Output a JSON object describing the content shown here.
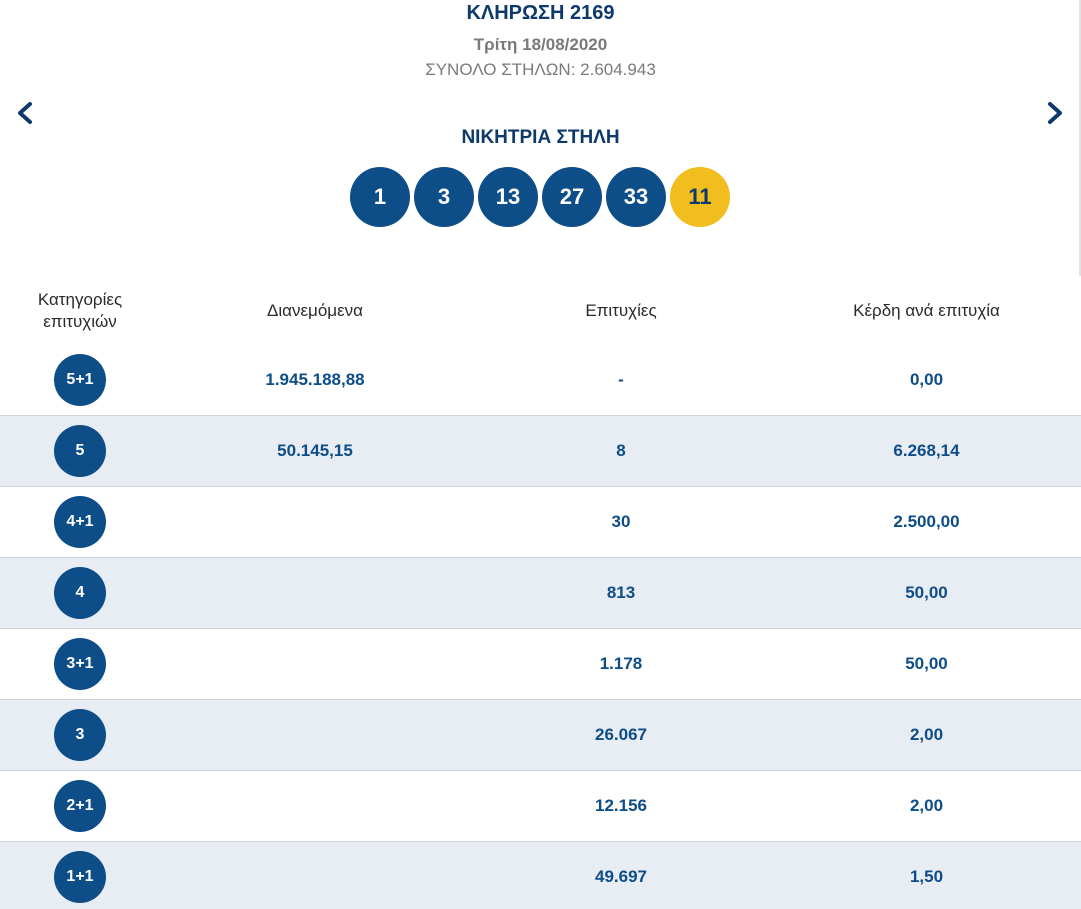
{
  "draw": {
    "title": "ΚΛΗΡΩΣΗ 2169",
    "date": "Τρίτη 18/08/2020",
    "total_columns": "ΣΥΝΟΛΟ ΣΤΗΛΩΝ: 2.604.943"
  },
  "navigation": {
    "prev_icon": "chevron-left-icon",
    "next_icon": "chevron-right-icon"
  },
  "winning": {
    "title": "ΝΙΚΗΤΡΙΑ ΣΤΗΛΗ",
    "numbers": [
      "1",
      "3",
      "13",
      "27",
      "33"
    ],
    "bonus": "11"
  },
  "colors": {
    "primary": "#0d4d88",
    "heading": "#0d3a6b",
    "bonus": "#f2bd1e",
    "row_alt": "#e8ecf3"
  },
  "table": {
    "headers": [
      "Κατηγορίες\nεπιτυχιών",
      "Διανεμόμενα",
      "Επιτυχίες",
      "Κέρδη ανά επιτυχία"
    ],
    "rows": [
      {
        "category": "5+1",
        "distributed": "1.945.188,88",
        "winners": "-",
        "prize": "0,00"
      },
      {
        "category": "5",
        "distributed": "50.145,15",
        "winners": "8",
        "prize": "6.268,14"
      },
      {
        "category": "4+1",
        "distributed": "",
        "winners": "30",
        "prize": "2.500,00"
      },
      {
        "category": "4",
        "distributed": "",
        "winners": "813",
        "prize": "50,00"
      },
      {
        "category": "3+1",
        "distributed": "",
        "winners": "1.178",
        "prize": "50,00"
      },
      {
        "category": "3",
        "distributed": "",
        "winners": "26.067",
        "prize": "2,00"
      },
      {
        "category": "2+1",
        "distributed": "",
        "winners": "12.156",
        "prize": "2,00"
      },
      {
        "category": "1+1",
        "distributed": "",
        "winners": "49.697",
        "prize": "1,50"
      }
    ]
  }
}
